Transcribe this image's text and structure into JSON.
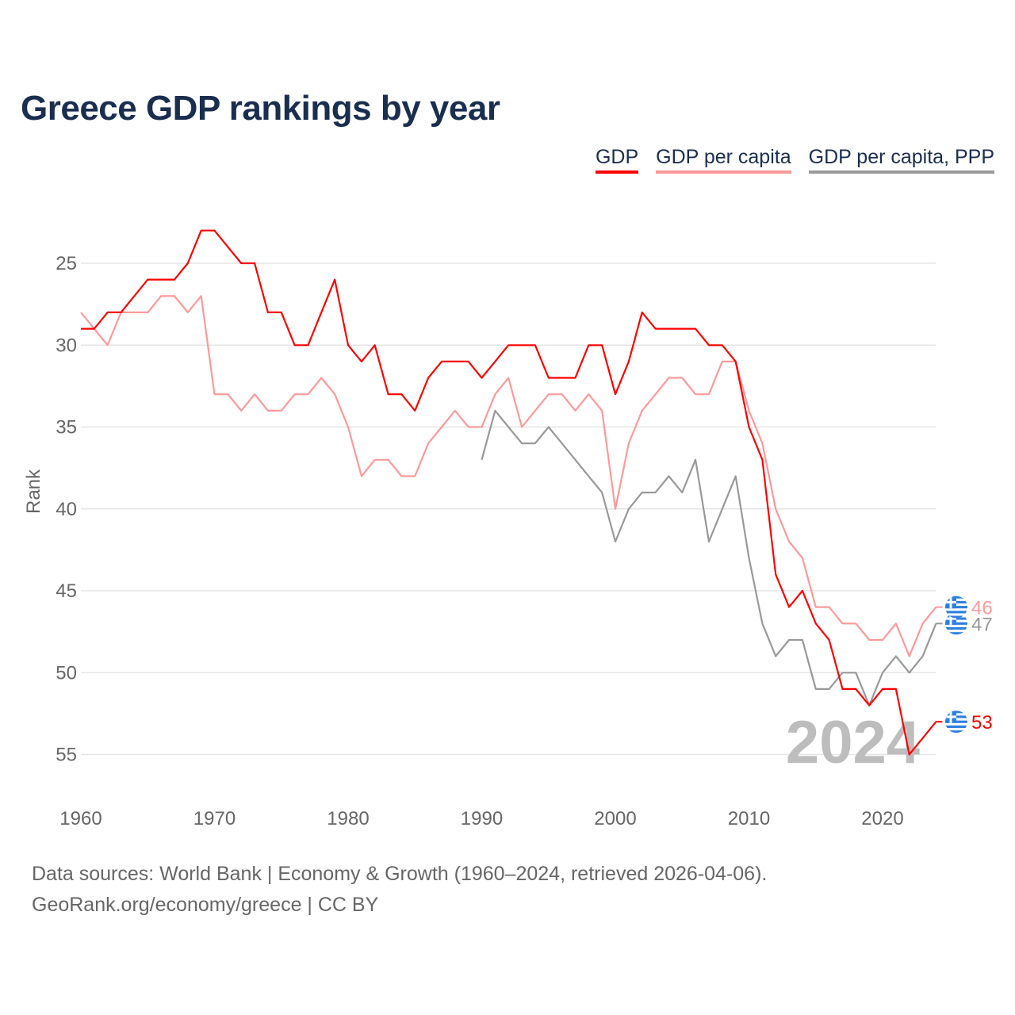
{
  "chart_data": {
    "type": "line",
    "title": "Greece GDP rankings by year",
    "xlabel": "",
    "ylabel": "Rank",
    "xlim": [
      1960,
      2024
    ],
    "ylim": [
      58,
      22
    ],
    "y_inverted": true,
    "grid": true,
    "legend_position": "top-right",
    "x_ticks": [
      1960,
      1970,
      1980,
      1990,
      2000,
      2010,
      2020
    ],
    "y_ticks": [
      25,
      30,
      35,
      40,
      45,
      50,
      55
    ],
    "watermark_year": "2024",
    "series": [
      {
        "name": "GDP",
        "color": "#ff0000",
        "start": 1960,
        "end_label": "53",
        "values": [
          29,
          29,
          28,
          28,
          27,
          26,
          26,
          26,
          25,
          23,
          23,
          24,
          25,
          25,
          28,
          28,
          30,
          30,
          28,
          26,
          30,
          31,
          30,
          33,
          33,
          34,
          32,
          31,
          31,
          31,
          32,
          31,
          30,
          30,
          30,
          32,
          32,
          32,
          30,
          30,
          33,
          31,
          28,
          29,
          29,
          29,
          29,
          30,
          30,
          31,
          35,
          37,
          44,
          46,
          45,
          47,
          48,
          51,
          51,
          52,
          51,
          51,
          55,
          54,
          53
        ]
      },
      {
        "name": "GDP per capita",
        "color": "#ff9999",
        "start": 1960,
        "end_label": "46",
        "values": [
          28,
          29,
          30,
          28,
          28,
          28,
          27,
          27,
          28,
          27,
          33,
          33,
          34,
          33,
          34,
          34,
          33,
          33,
          32,
          33,
          35,
          38,
          37,
          37,
          38,
          38,
          36,
          35,
          34,
          35,
          35,
          33,
          32,
          35,
          34,
          33,
          33,
          34,
          33,
          34,
          40,
          36,
          34,
          33,
          32,
          32,
          33,
          33,
          31,
          31,
          34,
          36,
          40,
          42,
          43,
          46,
          46,
          47,
          47,
          48,
          48,
          47,
          49,
          47,
          46
        ]
      },
      {
        "name": "GDP per capita, PPP",
        "color": "#999999",
        "start": 1990,
        "end_label": "47",
        "values": [
          37,
          34,
          35,
          36,
          36,
          35,
          36,
          37,
          38,
          39,
          42,
          40,
          39,
          39,
          38,
          39,
          37,
          42,
          40,
          38,
          43,
          47,
          49,
          48,
          48,
          51,
          51,
          50,
          50,
          52,
          50,
          49,
          50,
          49,
          47
        ]
      }
    ]
  },
  "footer": {
    "line1": "Data sources: World Bank | Economy & Growth (1960–2024, retrieved 2026-04-06).",
    "line2": "GeoRank.org/economy/greece | CC BY"
  }
}
